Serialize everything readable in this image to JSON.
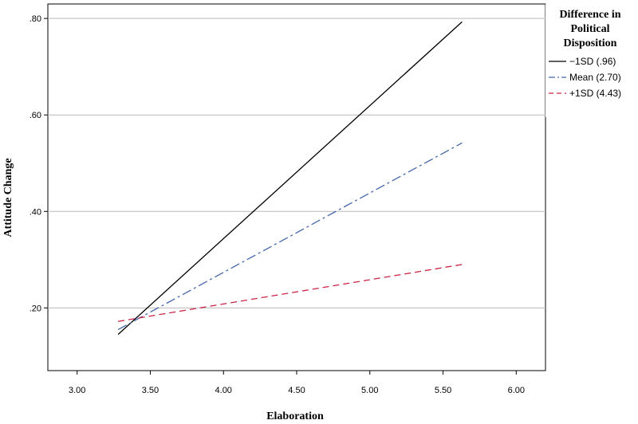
{
  "chart_data": {
    "type": "line",
    "xlabel": "Elaboration",
    "ylabel": "Attitude Change",
    "xlim": [
      2.8,
      6.2
    ],
    "ylim": [
      0.07,
      0.83
    ],
    "xticks": [
      "3.00",
      "3.50",
      "4.00",
      "4.50",
      "5.00",
      "5.50",
      "6.00"
    ],
    "yticks": [
      ".20",
      ".40",
      ".60",
      ".80"
    ],
    "grid": "horizontal",
    "legend": {
      "title_lines": [
        "Difference in",
        "Political",
        "Disposition"
      ],
      "placement": "right"
    },
    "series": [
      {
        "name": "−1SD (.96)",
        "color": "#000000",
        "style": "solid",
        "x": [
          3.28,
          5.63
        ],
        "y": [
          0.145,
          0.793
        ]
      },
      {
        "name": "Mean (2.70)",
        "color": "#4466aa",
        "style": "dashdot",
        "x": [
          3.28,
          5.63
        ],
        "y": [
          0.155,
          0.542
        ]
      },
      {
        "name": "+1SD (4.43)",
        "color": "#cc2244",
        "style": "dashed",
        "x": [
          3.28,
          5.63
        ],
        "y": [
          0.172,
          0.29
        ]
      }
    ]
  }
}
